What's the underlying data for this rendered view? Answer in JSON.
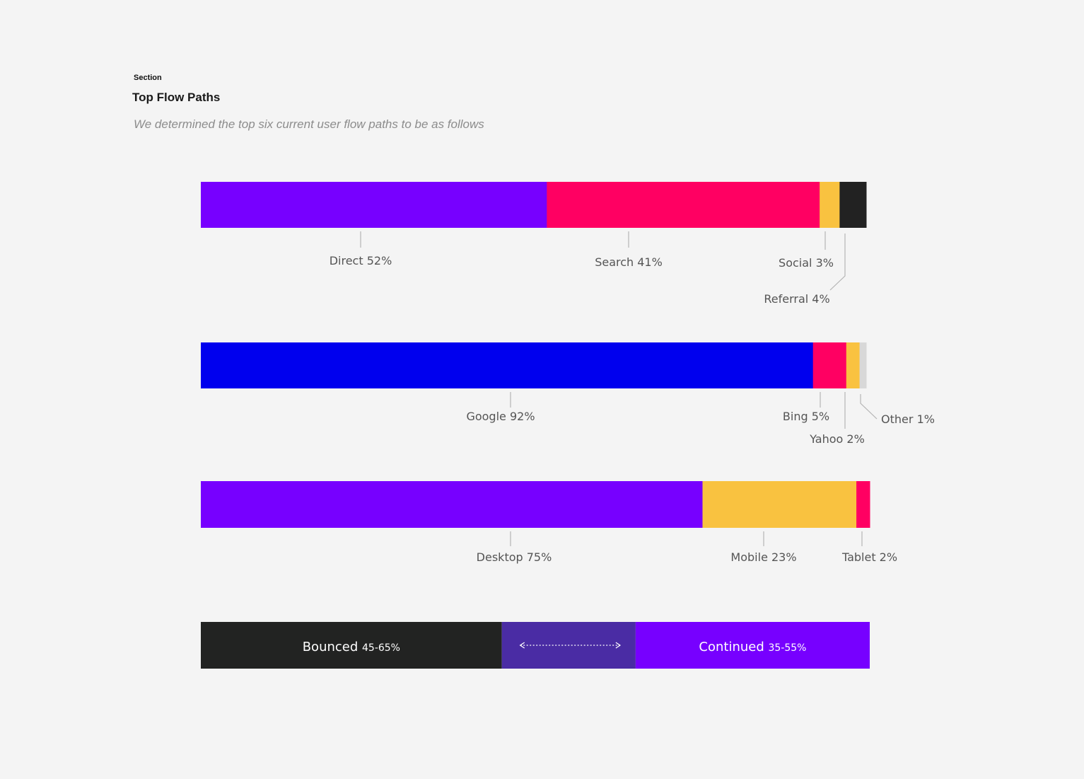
{
  "header": {
    "eyebrow": "Section",
    "title": "Top Flow Paths",
    "subtitle": "We determined the top six current user flow paths to be as follows"
  },
  "chart_data": [
    {
      "type": "bar",
      "orientation": "stacked-horizontal",
      "segments": [
        {
          "label": "Direct",
          "value": 52,
          "display": "Direct 52%",
          "color": "#7700ff"
        },
        {
          "label": "Search",
          "value": 41,
          "display": "Search 41%",
          "color": "#ff0062"
        },
        {
          "label": "Social",
          "value": 3,
          "display": "Social 3%",
          "color": "#f9c240"
        },
        {
          "label": "Referral",
          "value": 4,
          "display": "Referral 4%",
          "color": "#222222"
        }
      ]
    },
    {
      "type": "bar",
      "orientation": "stacked-horizontal",
      "segments": [
        {
          "label": "Google",
          "value": 92,
          "display": "Google 92%",
          "color": "#0000ee"
        },
        {
          "label": "Bing",
          "value": 5,
          "display": "Bing 5%",
          "color": "#ff0062"
        },
        {
          "label": "Yahoo",
          "value": 2,
          "display": "Yahoo 2%",
          "color": "#f9c240"
        },
        {
          "label": "Other",
          "value": 1,
          "display": "Other 1%",
          "color": "#d8d8d8"
        }
      ]
    },
    {
      "type": "bar",
      "orientation": "stacked-horizontal",
      "segments": [
        {
          "label": "Desktop",
          "value": 75,
          "display": "Desktop 75%",
          "color": "#7700ff"
        },
        {
          "label": "Mobile",
          "value": 23,
          "display": "Mobile 23%",
          "color": "#f9c240"
        },
        {
          "label": "Tablet",
          "value": 2,
          "display": "Tablet 2%",
          "color": "#ff0062"
        }
      ]
    },
    {
      "type": "bar",
      "orientation": "range-horizontal",
      "segments": [
        {
          "label": "Bounced",
          "range": "45-65%",
          "low": 45,
          "high": 65,
          "color": "#222322"
        },
        {
          "label": "Continued",
          "range": "35-55%",
          "low": 35,
          "high": 55,
          "color": "#7700ff"
        }
      ],
      "overlap_color": "#4a2ca4"
    }
  ]
}
